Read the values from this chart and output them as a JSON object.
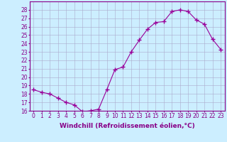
{
  "hours": [
    0,
    1,
    2,
    3,
    4,
    5,
    6,
    7,
    8,
    9,
    10,
    11,
    12,
    13,
    14,
    15,
    16,
    17,
    18,
    19,
    20,
    21,
    22,
    23
  ],
  "values": [
    18.5,
    18.2,
    18.0,
    17.5,
    17.0,
    16.7,
    15.9,
    16.0,
    16.2,
    18.5,
    20.9,
    21.2,
    23.0,
    24.4,
    25.7,
    26.5,
    26.6,
    27.8,
    28.0,
    27.8,
    26.8,
    26.3,
    24.5,
    23.3
  ],
  "line_color": "#990099",
  "marker": "+",
  "marker_size": 4,
  "bg_color": "#cceeff",
  "grid_color": "#aaaacc",
  "xlabel": "Windchill (Refroidissement éolien,°C)",
  "ylim": [
    16,
    29
  ],
  "xlim": [
    -0.5,
    23.5
  ],
  "yticks": [
    16,
    17,
    18,
    19,
    20,
    21,
    22,
    23,
    24,
    25,
    26,
    27,
    28
  ],
  "xticks": [
    0,
    1,
    2,
    3,
    4,
    5,
    6,
    7,
    8,
    9,
    10,
    11,
    12,
    13,
    14,
    15,
    16,
    17,
    18,
    19,
    20,
    21,
    22,
    23
  ],
  "tick_fontsize": 5.5,
  "xlabel_fontsize": 6.5,
  "axis_color": "#880088"
}
